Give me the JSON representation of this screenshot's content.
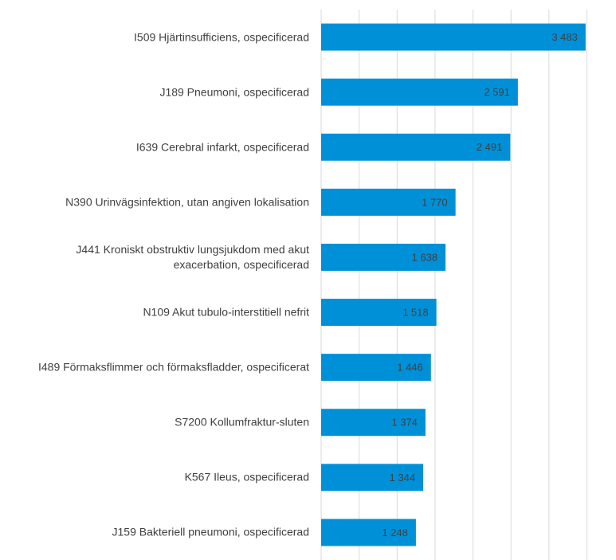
{
  "chart_data": {
    "type": "barh",
    "categories": [
      "I509 Hjärtinsufficiens, ospecificerad",
      "J189 Pneumoni, ospecificerad",
      "I639 Cerebral infarkt, ospecificerad",
      "N390 Urinvägsinfektion, utan angiven lokalisation",
      "J441 Kroniskt obstruktiv lungsjukdom med akut\nexacerbation, ospecificerad",
      "N109 Akut tubulo-interstitiell nefrit",
      "I489 Förmaksflimmer och förmaksfladder, ospecificerat",
      "S7200 Kollumfraktur-sluten",
      "K567 Ileus, ospecificerad",
      "J159 Bakteriell pneumoni, ospecificerad"
    ],
    "values": [
      3483,
      2591,
      2491,
      1770,
      1638,
      1518,
      1446,
      1374,
      1344,
      1248
    ],
    "value_labels": [
      "3 483",
      "2 591",
      "2 491",
      "1 770",
      "1 638",
      "1 518",
      "1 446",
      "1 374",
      "1 344",
      "1 248"
    ],
    "color": "#0090d8",
    "xlim": [
      0,
      3500
    ],
    "xticks": [
      0,
      500,
      1000,
      1500,
      2000,
      2500,
      3000,
      3500
    ],
    "grid": true
  }
}
